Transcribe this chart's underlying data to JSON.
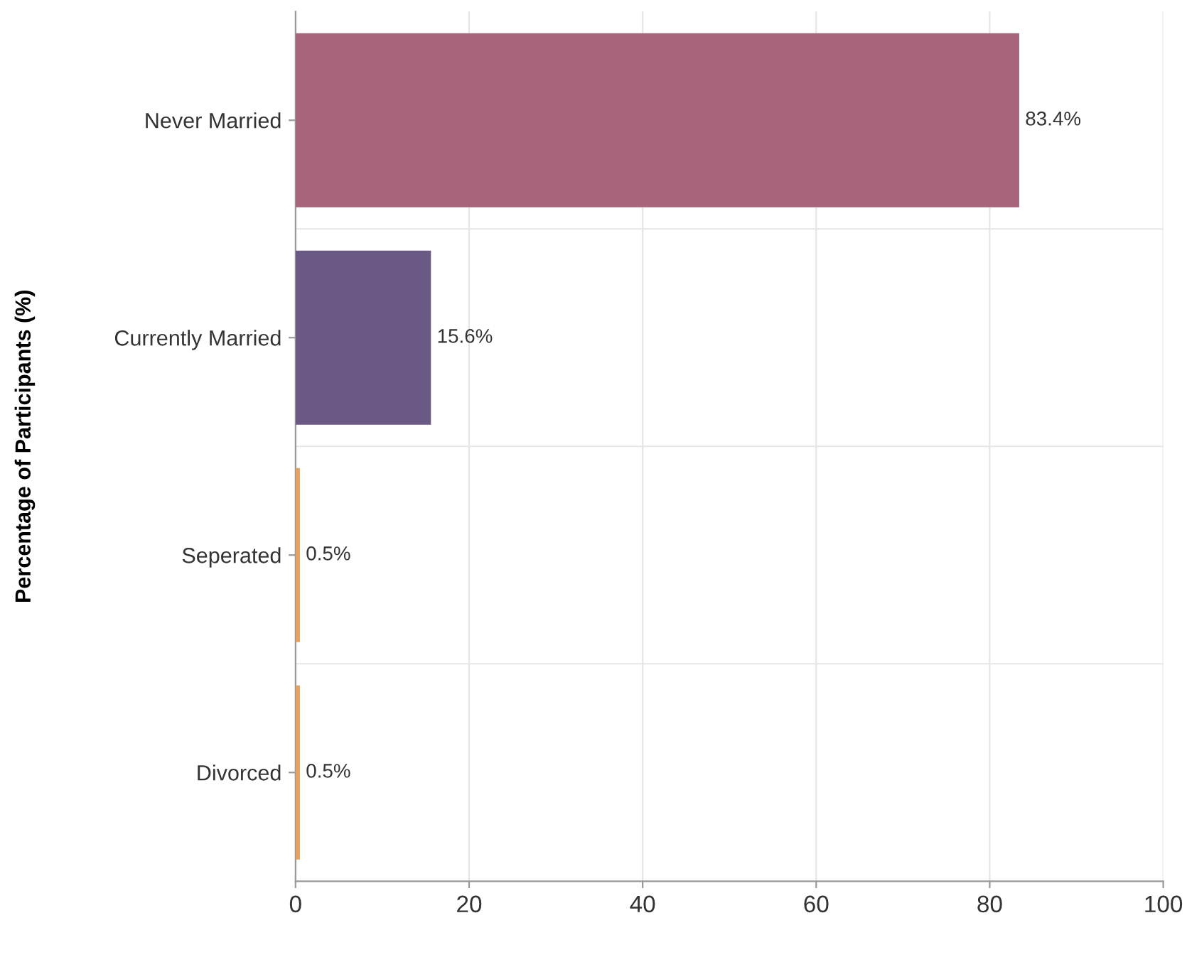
{
  "chart_data": {
    "type": "bar",
    "orientation": "horizontal",
    "ylabel": "Percentage of Participants (%)",
    "categories": [
      "Never Married",
      "Currently Married",
      "Seperated",
      "Divorced"
    ],
    "values": [
      83.4,
      15.6,
      0.5,
      0.5
    ],
    "colors": [
      "#a8647a",
      "#6a5985",
      "#e8a060",
      "#e8a060"
    ],
    "value_labels": [
      "83.4%",
      "15.6%",
      "0.5%",
      "0.5%"
    ],
    "xlim": [
      0,
      100
    ],
    "xticks": [
      0,
      20,
      40,
      60,
      80,
      100
    ],
    "grid": true
  }
}
